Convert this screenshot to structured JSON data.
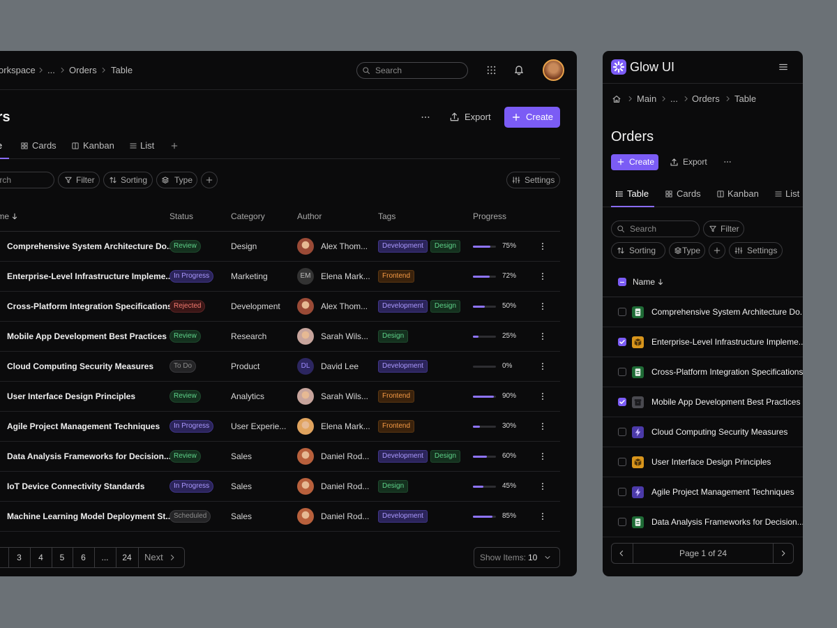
{
  "main": {
    "breadcrumb": [
      "Workspace",
      "...",
      "Orders",
      "Table"
    ],
    "search_placeholder": "Search",
    "title": "Orders",
    "export": "Export",
    "create": "Create",
    "tabs": [
      "Table",
      "Cards",
      "Kanban",
      "List"
    ],
    "filter_search": "Search",
    "filters": [
      "Filter",
      "Sorting",
      "Type"
    ],
    "settings": "Settings",
    "columns": [
      "Name",
      "Status",
      "Category",
      "Author",
      "Tags",
      "Progress"
    ],
    "rows": [
      {
        "name": "Comprehensive System Architecture Do...",
        "status": "Review",
        "status_color": "green",
        "category": "Design",
        "author": "Alex Thom...",
        "avatar_color": "#9a4a36",
        "tags": [
          {
            "label": "Development",
            "color": "purple"
          },
          {
            "label": "Design",
            "color": "green"
          }
        ],
        "progress": {
          "value": 75,
          "label": "75%"
        }
      },
      {
        "name": "Enterprise-Level Infrastructure Impleme...",
        "status": "In Progress",
        "status_color": "purple",
        "category": "Marketing",
        "author": "Elena Mark...",
        "initials": "EM",
        "avatar_color": "#333333",
        "tags": [
          {
            "label": "Frontend",
            "color": "orange"
          }
        ],
        "progress": {
          "value": 72,
          "label": "72%"
        }
      },
      {
        "name": "Cross-Platform Integration Specifications",
        "status": "Rejected",
        "status_color": "red",
        "category": "Development",
        "author": "Alex Thom...",
        "avatar_color": "#9a4a36",
        "tags": [
          {
            "label": "Development",
            "color": "purple"
          },
          {
            "label": "Design",
            "color": "green"
          }
        ],
        "progress": {
          "value": 50,
          "label": "50%"
        }
      },
      {
        "name": "Mobile App Development Best Practices",
        "status": "Review",
        "status_color": "green",
        "category": "Research",
        "author": "Sarah Wils...",
        "avatar_color": "#c7a49c",
        "tags": [
          {
            "label": "Design",
            "color": "green"
          }
        ],
        "progress": {
          "value": 25,
          "label": "25%"
        }
      },
      {
        "name": "Cloud Computing Security Measures",
        "status": "To Do",
        "status_color": "gray",
        "category": "Product",
        "author": "David Lee",
        "initials": "DL",
        "avatar_color": "#2c2660",
        "tags": [
          {
            "label": "Development",
            "color": "purple"
          }
        ],
        "progress": {
          "value": 0,
          "label": "0%"
        }
      },
      {
        "name": "User Interface Design Principles",
        "status": "Review",
        "status_color": "green",
        "category": "Analytics",
        "author": "Sarah Wils...",
        "avatar_color": "#c7a49c",
        "tags": [
          {
            "label": "Frontend",
            "color": "orange"
          }
        ],
        "progress": {
          "value": 90,
          "label": "90%"
        }
      },
      {
        "name": "Agile Project Management Techniques",
        "status": "In Progress",
        "status_color": "purple",
        "category": "User Experie...",
        "author": "Elena Mark...",
        "avatar_color": "#e0a35e",
        "tags": [
          {
            "label": "Frontend",
            "color": "orange"
          }
        ],
        "progress": {
          "value": 30,
          "label": "30%"
        }
      },
      {
        "name": "Data Analysis Frameworks for Decision...",
        "status": "Review",
        "status_color": "green",
        "category": "Sales",
        "author": "Daniel Rod...",
        "avatar_color": "#b8603c",
        "tags": [
          {
            "label": "Development",
            "color": "purple"
          },
          {
            "label": "Design",
            "color": "green"
          }
        ],
        "progress": {
          "value": 60,
          "label": "60%"
        }
      },
      {
        "name": "IoT Device Connectivity Standards",
        "status": "In Progress",
        "status_color": "purple",
        "category": "Sales",
        "author": "Daniel Rod...",
        "avatar_color": "#b8603c",
        "tags": [
          {
            "label": "Design",
            "color": "green"
          }
        ],
        "progress": {
          "value": 45,
          "label": "45%"
        }
      },
      {
        "name": "Machine Learning Model Deployment St...",
        "status": "Scheduled",
        "status_color": "gray",
        "category": "Sales",
        "author": "Daniel Rod...",
        "avatar_color": "#b8603c",
        "tags": [
          {
            "label": "Development",
            "color": "purple"
          }
        ],
        "progress": {
          "value": 85,
          "label": "85%"
        }
      }
    ],
    "pagination": {
      "pages": [
        "3",
        "4",
        "5",
        "6",
        "...",
        "24"
      ],
      "next": "Next",
      "show_items_label": "Show Items:",
      "show_items_value": "10"
    }
  },
  "side": {
    "brand": "Glow UI",
    "breadcrumb": [
      "Main",
      "...",
      "Orders",
      "Table"
    ],
    "title": "Orders",
    "create": "Create",
    "export": "Export",
    "tabs": [
      "Table",
      "Cards",
      "Kanban",
      "List"
    ],
    "search_placeholder": "Search",
    "filters": [
      "Filter",
      "Sorting",
      "Type"
    ],
    "settings": "Settings",
    "column": "Name",
    "rows": [
      {
        "name": "Comprehensive System Architecture Do...",
        "icon": "doc",
        "checked": false
      },
      {
        "name": "Enterprise-Level Infrastructure Impleme...",
        "icon": "box",
        "checked": true
      },
      {
        "name": "Cross-Platform Integration Specifications",
        "icon": "doc",
        "checked": false
      },
      {
        "name": "Mobile App Development Best Practices",
        "icon": "archive",
        "checked": true
      },
      {
        "name": "Cloud Computing Security Measures",
        "icon": "bolt",
        "checked": false
      },
      {
        "name": "User Interface Design Principles",
        "icon": "box",
        "checked": false
      },
      {
        "name": "Agile Project Management Techniques",
        "icon": "bolt",
        "checked": false
      },
      {
        "name": "Data Analysis Frameworks for Decision...",
        "icon": "doc",
        "checked": false
      }
    ],
    "page_label": "Page 1 of 24"
  }
}
